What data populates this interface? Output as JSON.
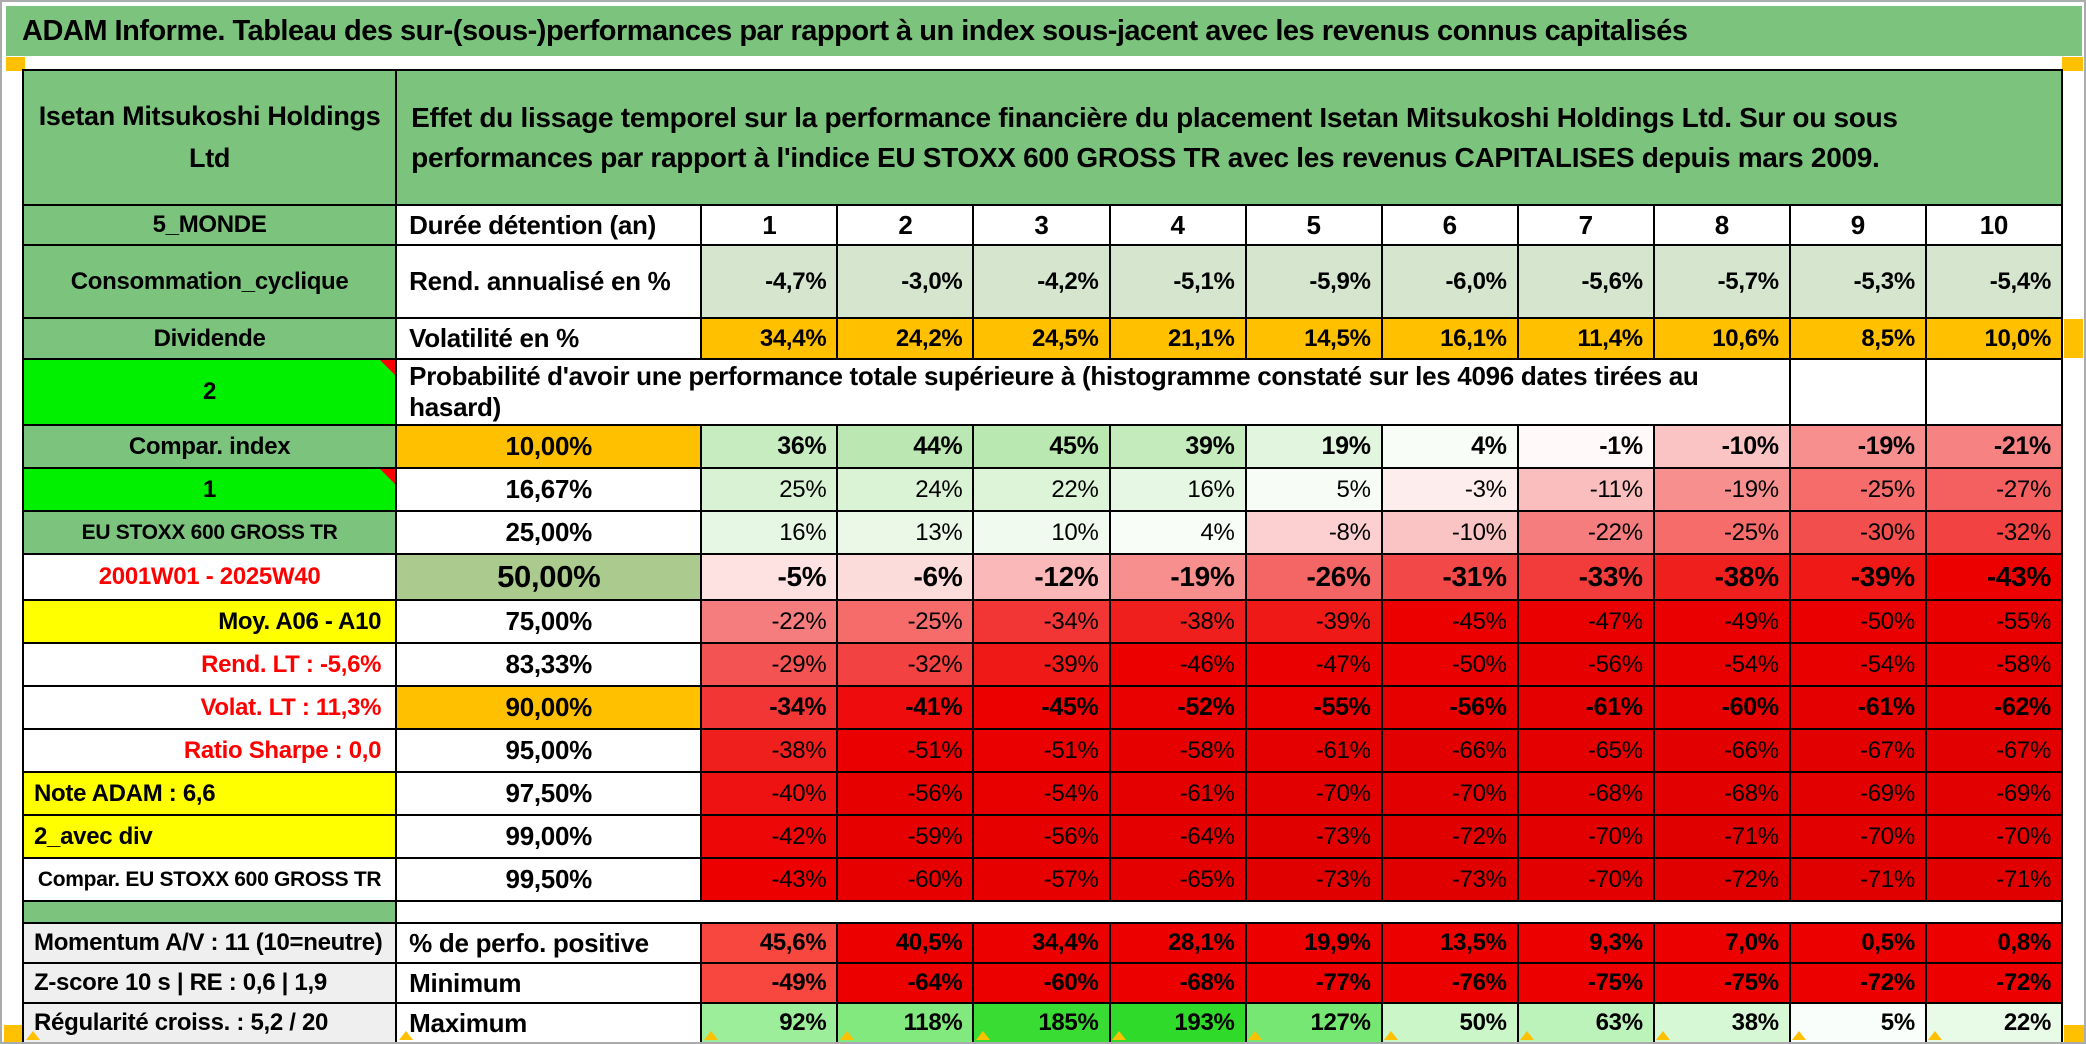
{
  "window": {
    "title": "ADAM Informe. Tableau des sur-(sous-)performances par rapport à un index sous-jacent avec les revenus connus capitalisés"
  },
  "colors": {
    "green": "#7CC47D",
    "bright_green": "#00F000",
    "orange": "#FFC000",
    "yellow": "#FFFF00",
    "light_green": "#D6E6CE",
    "median_green": "#ABCA8D",
    "label_gray": "#EFEFEF",
    "pure_red": "#ED0000",
    "lighter_red": "#F8473E",
    "red_text": "#FF0000",
    "marker_orange": "#FFC000",
    "frame_gray": "#ABABAB"
  },
  "header": {
    "company": "Isetan Mitsukoshi Holdings\nLtd",
    "description": "Effet du lissage temporel sur la performance financière du placement Isetan Mitsukoshi Holdings Ltd. Sur ou sous\nperformances par rapport à l'indice EU STOXX 600 GROSS TR avec les revenus CAPITALISES depuis mars 2009."
  },
  "columns": {
    "years": [
      "1",
      "2",
      "3",
      "4",
      "5",
      "6",
      "7",
      "8",
      "9",
      "10"
    ]
  },
  "top": {
    "duration": {
      "a": "5_MONDE",
      "b": "Durée détention (an)"
    },
    "annualized": {
      "a": "Consommation_cyclique",
      "b": "Rend. annualisé en %",
      "values": [
        "-4,7%",
        "-3,0%",
        "-4,2%",
        "-5,1%",
        "-5,9%",
        "-6,0%",
        "-5,6%",
        "-5,7%",
        "-5,3%",
        "-5,4%"
      ]
    },
    "volatility": {
      "a": "Dividende",
      "b": "Volatilité en %",
      "values": [
        "34,4%",
        "24,2%",
        "24,5%",
        "21,1%",
        "14,5%",
        "16,1%",
        "11,4%",
        "10,6%",
        "8,5%",
        "10,0%"
      ]
    }
  },
  "probability": {
    "a": "2",
    "title": "Probabilité d'avoir une performance totale supérieure à (histogramme constaté sur les 4096 dates tirées au hasard)",
    "rows": [
      {
        "a": "Compar. index",
        "a_style": "green",
        "b": "10,00%",
        "b_style": "orange",
        "emphasis": "bold",
        "values": [
          36,
          44,
          45,
          39,
          19,
          4,
          -1,
          -10,
          -19,
          -21
        ]
      },
      {
        "a": "1",
        "a_style": "bright corner",
        "b": "16,67%",
        "b_style": "",
        "values": [
          25,
          24,
          22,
          16,
          5,
          -3,
          -11,
          -19,
          -25,
          -27
        ]
      },
      {
        "a": "EU STOXX 600 GROSS TR",
        "a_style": "green small",
        "b": "25,00%",
        "b_style": "",
        "values": [
          16,
          13,
          10,
          4,
          -8,
          -10,
          -22,
          -25,
          -30,
          -32
        ]
      },
      {
        "a": "2001W01 - 2025W40",
        "a_style": "redtext",
        "b": "50,00%",
        "b_style": "median big",
        "emphasis": "big",
        "values": [
          -5,
          -6,
          -12,
          -19,
          -26,
          -31,
          -33,
          -38,
          -39,
          -43
        ]
      },
      {
        "a": "Moy. A06 - A10",
        "a_style": "yellow right",
        "b": "75,00%",
        "b_style": "",
        "values": [
          -22,
          -25,
          -34,
          -38,
          -39,
          -45,
          -47,
          -49,
          -50,
          -55
        ]
      },
      {
        "a": "Rend. LT :  -5,6%",
        "a_style": "redtext right",
        "b": "83,33%",
        "b_style": "",
        "values": [
          -29,
          -32,
          -39,
          -46,
          -47,
          -50,
          -56,
          -54,
          -54,
          -58
        ]
      },
      {
        "a": "Volat. LT :  11,3%",
        "a_style": "redtext right",
        "b": "90,00%",
        "b_style": "orange",
        "emphasis": "bold",
        "values": [
          -34,
          -41,
          -45,
          -52,
          -55,
          -56,
          -61,
          -60,
          -61,
          -62
        ]
      },
      {
        "a": "Ratio Sharpe :  0,0",
        "a_style": "redtext right",
        "b": "95,00%",
        "b_style": "",
        "values": [
          -38,
          -51,
          -51,
          -58,
          -61,
          -66,
          -65,
          -66,
          -67,
          -67
        ]
      },
      {
        "a": "Note ADAM : 6,6",
        "a_style": "yellow left",
        "b": "97,50%",
        "b_style": "",
        "values": [
          -40,
          -56,
          -54,
          -61,
          -70,
          -70,
          -68,
          -68,
          -69,
          -69
        ]
      },
      {
        "a": "2_avec div",
        "a_style": "yellow left",
        "b": "99,00%",
        "b_style": "",
        "values": [
          -42,
          -59,
          -56,
          -64,
          -73,
          -72,
          -70,
          -71,
          -70,
          -70
        ]
      },
      {
        "a": "Compar. EU STOXX 600 GROSS TR",
        "a_style": "small",
        "b": "99,50%",
        "b_style": "",
        "values": [
          -43,
          -60,
          -57,
          -65,
          -73,
          -73,
          -70,
          -72,
          -71,
          -71
        ]
      }
    ]
  },
  "summary": {
    "rows": [
      {
        "a": "Momentum A/V : 11 (10=neutre)",
        "b": "% de perfo. positive",
        "values": [
          "45,6%",
          "40,5%",
          "34,4%",
          "28,1%",
          "19,9%",
          "13,5%",
          "9,3%",
          "7,0%",
          "0,5%",
          "0,8%"
        ],
        "bg": [
          "#F8473E",
          "#ED0000",
          "#ED0000",
          "#ED0000",
          "#ED0000",
          "#ED0000",
          "#ED0000",
          "#ED0000",
          "#ED0000",
          "#ED0000"
        ]
      },
      {
        "a": "Z-score 10 s | RE : 0,6 | 1,9",
        "b": "Minimum",
        "values": [
          -49,
          -64,
          -60,
          -68,
          -77,
          -76,
          -75,
          -75,
          -72,
          -72
        ],
        "bg": [
          "#F8473E",
          "#ED0000",
          "#ED0000",
          "#ED0000",
          "#ED0000",
          "#ED0000",
          "#ED0000",
          "#ED0000",
          "#ED0000",
          "#ED0000"
        ]
      },
      {
        "a": "Régularité croiss. : 5,2 / 20",
        "b": "Maximum",
        "values": [
          92,
          118,
          185,
          193,
          127,
          50,
          63,
          38,
          5,
          22
        ],
        "bg": "green_scale"
      }
    ]
  }
}
